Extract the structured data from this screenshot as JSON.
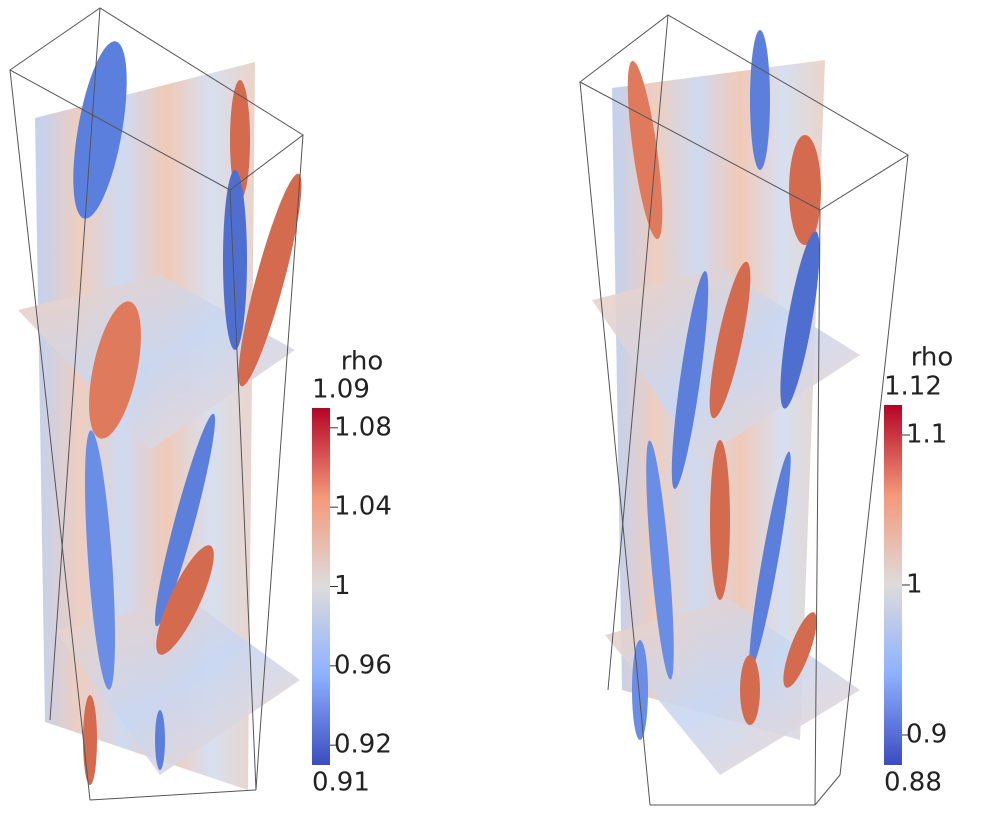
{
  "colorbars": [
    {
      "title": "rho",
      "min": 0.91,
      "max": 1.09,
      "ticks": [
        1.08,
        1.04,
        1,
        0.96,
        0.92
      ]
    },
    {
      "title": "rho",
      "min": 0.88,
      "max": 1.12,
      "ticks": [
        1.1,
        1,
        0.9
      ]
    }
  ]
}
